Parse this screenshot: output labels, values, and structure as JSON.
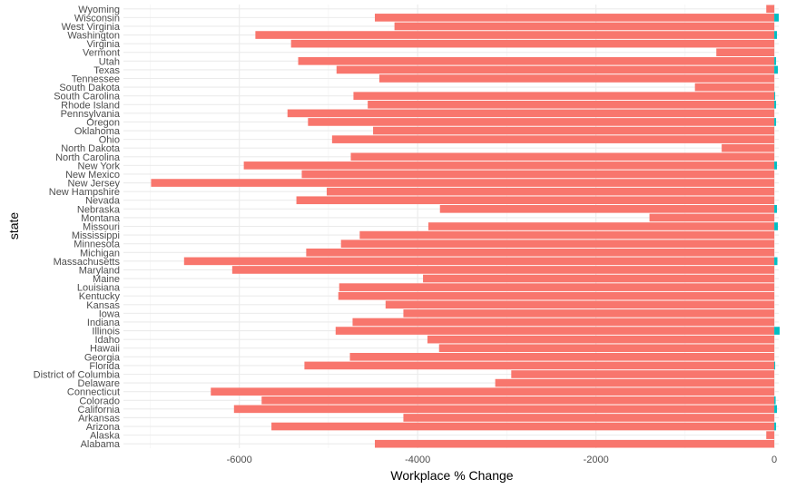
{
  "chart_data": {
    "type": "bar",
    "orientation": "horizontal",
    "xlabel": "Workplace % Change",
    "ylabel": "state",
    "xlim": [
      -7300,
      50
    ],
    "x_ticks": [
      -6000,
      -4000,
      -2000,
      0
    ],
    "x_tick_labels": [
      "-6000",
      "-4000",
      "-2000",
      "0"
    ],
    "grid": true,
    "legend": "none",
    "categories": [
      "Alabama",
      "Alaska",
      "Arizona",
      "Arkansas",
      "California",
      "Colorado",
      "Connecticut",
      "Delaware",
      "District of Columbia",
      "Florida",
      "Georgia",
      "Hawaii",
      "Idaho",
      "Illinois",
      "Indiana",
      "Iowa",
      "Kansas",
      "Kentucky",
      "Louisiana",
      "Maine",
      "Maryland",
      "Massachusetts",
      "Michigan",
      "Minnesota",
      "Mississippi",
      "Missouri",
      "Montana",
      "Nebraska",
      "Nevada",
      "New Hampshire",
      "New Jersey",
      "New Mexico",
      "New York",
      "North Carolina",
      "North Dakota",
      "Ohio",
      "Oklahoma",
      "Oregon",
      "Pennsylvania",
      "Rhode Island",
      "South Carolina",
      "South Dakota",
      "Tennessee",
      "Texas",
      "Utah",
      "Vermont",
      "Virginia",
      "Washington",
      "West Virginia",
      "Wisconsin",
      "Wyoming"
    ],
    "series": [
      {
        "color": "#F8766D",
        "values": [
          -4480,
          -90,
          -5640,
          -4160,
          -6060,
          -5750,
          -6320,
          -3130,
          -2950,
          -5270,
          -4760,
          -3760,
          -3890,
          -4920,
          -4730,
          -4160,
          -4360,
          -4890,
          -4880,
          -3940,
          -6080,
          -6620,
          -5250,
          -4860,
          -4650,
          -3880,
          -1400,
          -3750,
          -5360,
          -5020,
          -6990,
          -5300,
          -5950,
          -4750,
          -590,
          -4960,
          -4500,
          -5230,
          -5460,
          -4560,
          -4720,
          -890,
          -4430,
          -4910,
          -5340,
          -650,
          -5420,
          -5820,
          -4260,
          -4480,
          -90
        ]
      },
      {
        "color": "#00BFC4",
        "values": [
          0,
          0,
          20,
          0,
          30,
          15,
          0,
          0,
          0,
          10,
          0,
          0,
          0,
          60,
          0,
          0,
          0,
          0,
          0,
          0,
          0,
          35,
          0,
          0,
          0,
          40,
          0,
          30,
          0,
          0,
          0,
          0,
          30,
          0,
          0,
          0,
          0,
          20,
          0,
          20,
          10,
          0,
          0,
          40,
          20,
          0,
          0,
          30,
          0,
          50,
          0
        ]
      }
    ]
  }
}
